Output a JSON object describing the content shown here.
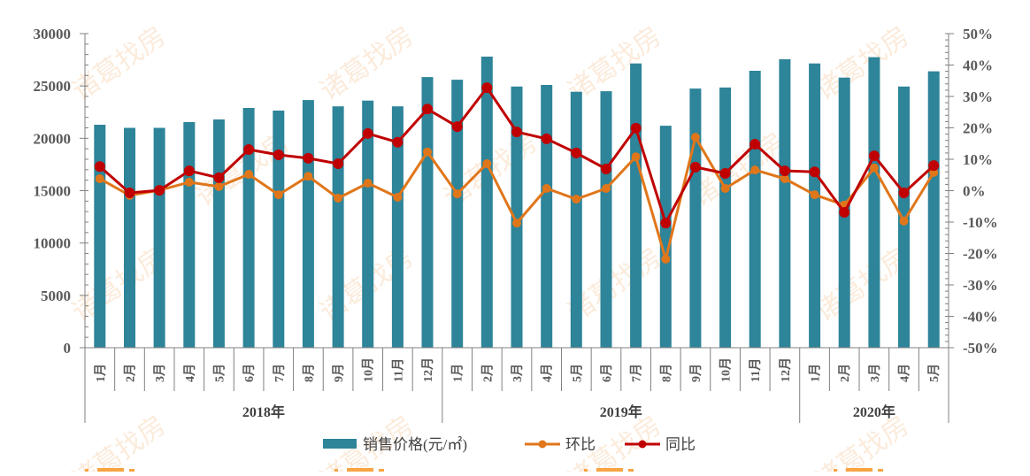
{
  "chart_data": {
    "type": "bar+line",
    "title": "",
    "watermark": "诸葛找房",
    "colors": {
      "bar": "#2E8499",
      "mom_line": "#E0761A",
      "yoy_line": "#C00000",
      "axis": "#808080",
      "text": "#595959"
    },
    "left_axis": {
      "min": 0,
      "max": 30000,
      "ticks": [
        "0",
        "5000",
        "10000",
        "15000",
        "20000",
        "25000",
        "30000"
      ]
    },
    "right_axis": {
      "min": -50,
      "max": 50,
      "unit": "%",
      "ticks": [
        "-50%",
        "-40%",
        "-30%",
        "-20%",
        "-10%",
        "0%",
        "10%",
        "20%",
        "30%",
        "40%",
        "50%"
      ]
    },
    "years": [
      {
        "label": "2018年",
        "months": 12
      },
      {
        "label": "2019年",
        "months": 12
      },
      {
        "label": "2020年",
        "months": 5
      }
    ],
    "categories": [
      "1月",
      "2月",
      "3月",
      "4月",
      "5月",
      "6月",
      "7月",
      "8月",
      "9月",
      "10月",
      "11月",
      "12月",
      "1月",
      "2月",
      "3月",
      "4月",
      "5月",
      "6月",
      "7月",
      "8月",
      "9月",
      "10月",
      "11月",
      "12月",
      "1月",
      "2月",
      "3月",
      "4月",
      "5月"
    ],
    "series": [
      {
        "name": "销售价格(元/㎡)",
        "type": "bar",
        "axis": "left",
        "values": [
          21300,
          21000,
          21000,
          21550,
          21800,
          22900,
          22650,
          23650,
          23050,
          23600,
          23050,
          25850,
          25600,
          27800,
          24950,
          25100,
          24450,
          24500,
          27150,
          21200,
          24750,
          24850,
          26450,
          27550,
          27150,
          25800,
          27750,
          24950,
          26400
        ]
      },
      {
        "name": "环比",
        "type": "line",
        "axis": "right",
        "values": [
          3.8,
          -1.5,
          0.1,
          2.7,
          1.3,
          5.2,
          -1.3,
          4.6,
          -2.4,
          2.4,
          -2.1,
          12.3,
          -1.0,
          8.6,
          -10.3,
          0.7,
          -2.7,
          0.7,
          10.8,
          -21.8,
          17.0,
          0.7,
          6.6,
          3.8,
          -1.3,
          -4.6,
          7.2,
          -9.7,
          5.8
        ]
      },
      {
        "name": "同比",
        "type": "line",
        "axis": "right",
        "values": [
          7.7,
          -0.7,
          0.1,
          6.3,
          4.1,
          13.1,
          11.4,
          10.3,
          8.6,
          18.2,
          15.4,
          26.0,
          20.4,
          32.8,
          18.7,
          16.5,
          12.0,
          6.9,
          19.9,
          -10.3,
          7.5,
          5.5,
          14.8,
          6.3,
          6.0,
          -6.9,
          11.1,
          -0.7,
          8.0
        ]
      }
    ],
    "legend": {
      "position": "bottom",
      "items": [
        {
          "label": "销售价格(元/㎡)",
          "kind": "bar"
        },
        {
          "label": "环比",
          "kind": "line"
        },
        {
          "label": "同比",
          "kind": "line"
        }
      ]
    },
    "grid": false,
    "xlabel": "",
    "ylabel": ""
  }
}
